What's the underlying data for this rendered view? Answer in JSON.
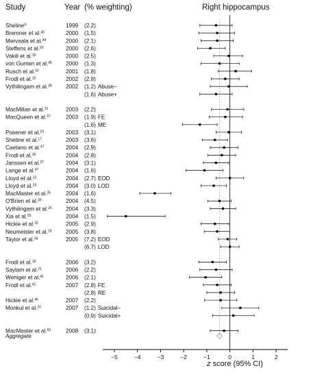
{
  "headers": {
    "study": "Study",
    "year": "Year",
    "weighting": "(% weighting)",
    "panel": "Right hippocampus"
  },
  "xlabel_prefix": "z",
  "xlabel_suffix": " score (95% CI)",
  "aggregate_label": "Aggregate",
  "colors": {
    "text": "#111111",
    "axis": "#000000",
    "ref_line": "#999999"
  },
  "chart_data": {
    "type": "forest",
    "xlim": [
      -5.5,
      2.5
    ],
    "xticks": [
      -5,
      -4,
      -3,
      -2,
      -1,
      0,
      1,
      2
    ],
    "xtick_labels": [
      "−5",
      "−4",
      "−3",
      "−2",
      "−1",
      "0",
      "1",
      "2"
    ],
    "aggregate": {
      "year": "",
      "weight": "",
      "estimate": -0.45
    },
    "rows": [
      {
        "study": "Sheline",
        "sup": "9",
        "year": "1999",
        "weight": "(2.2)",
        "sub": "",
        "est": -0.6,
        "lo": -1.3,
        "hi": 0.1
      },
      {
        "study": "Bremner et al.",
        "sup": "40",
        "year": "2000",
        "weight": "(1.5)",
        "sub": "",
        "est": -0.55,
        "lo": -1.35,
        "hi": 0.2
      },
      {
        "study": "Mervaala et al.",
        "sup": "44",
        "year": "2000",
        "weight": "(2.1)",
        "sub": "",
        "est": -0.55,
        "lo": -1.25,
        "hi": 0.15
      },
      {
        "study": "Steffens et al.",
        "sup": "30",
        "year": "2000",
        "weight": "(2.6)",
        "sub": "",
        "est": -0.85,
        "lo": -1.4,
        "hi": -0.2
      },
      {
        "study": "Vakili et al.",
        "sup": "32",
        "year": "2000",
        "weight": "(2.5)",
        "sub": "",
        "est": -0.05,
        "lo": -0.7,
        "hi": 0.55
      },
      {
        "study": "von Gunten et al.",
        "sup": "45",
        "year": "2000",
        "weight": "(1.3)",
        "sub": "",
        "est": -0.45,
        "lo": -1.25,
        "hi": 0.4
      },
      {
        "study": "Rusch et al.",
        "sup": "50",
        "year": "2001",
        "weight": "(1.8)",
        "sub": "",
        "est": 0.25,
        "lo": -0.5,
        "hi": 0.95
      },
      {
        "study": "Frodl et al.",
        "sup": "15",
        "year": "2002",
        "weight": "(2.8)",
        "sub": "",
        "est": -0.2,
        "lo": -0.8,
        "hi": 0.4
      },
      {
        "study": "Vythilingam et al.",
        "sup": "38",
        "year": "2002",
        "weight": "(1.2)",
        "sub": "Abuse–",
        "est": -0.05,
        "lo": -0.85,
        "hi": 0.75
      },
      {
        "study": "",
        "sup": "",
        "year": "",
        "weight": "(1.6)",
        "sub": "Abuse+",
        "est": -0.6,
        "lo": -1.3,
        "hi": 0.1
      },
      {
        "study": "",
        "sup": "",
        "year": "",
        "weight": "",
        "sub": "",
        "est": null,
        "lo": null,
        "hi": null
      },
      {
        "study": "MacMillan et al.",
        "sup": "31",
        "year": "2003",
        "weight": "(2.2)",
        "sub": "",
        "est": -0.1,
        "lo": -0.8,
        "hi": 0.6
      },
      {
        "study": "MacQueen et al.",
        "sup": "37",
        "year": "2003",
        "weight": "(1.9)",
        "sub": "FE",
        "est": -0.2,
        "lo": -0.9,
        "hi": 0.55
      },
      {
        "study": "",
        "sup": "",
        "year": "",
        "weight": "(1.6)",
        "sub": "ME",
        "est": -1.3,
        "lo": -2.05,
        "hi": -0.55
      },
      {
        "study": "Posener et al.",
        "sup": "29",
        "year": "2003",
        "weight": "(3.1)",
        "sub": "",
        "est": -0.05,
        "lo": -0.6,
        "hi": 0.5
      },
      {
        "study": "Sheline et al.",
        "sup": "17",
        "year": "2003",
        "weight": "(3.6)",
        "sub": "",
        "est": -0.65,
        "lo": -1.2,
        "hi": -0.1
      },
      {
        "study": "Caetano et al.",
        "sup": "47",
        "year": "2004",
        "weight": "(2.9)",
        "sub": "",
        "est": -0.25,
        "lo": -0.85,
        "hi": 0.35
      },
      {
        "study": "Frodl et al.",
        "sup": "16",
        "year": "2004",
        "weight": "(2.8)",
        "sub": "",
        "est": -0.35,
        "lo": -0.95,
        "hi": 0.25
      },
      {
        "study": "Janssen et al.",
        "sup": "27",
        "year": "2004",
        "weight": "(3.1)",
        "sub": "",
        "est": -0.6,
        "lo": -1.15,
        "hi": -0.05
      },
      {
        "study": "Lange et al.",
        "sup": "47",
        "year": "2004",
        "weight": "(1.6)",
        "sub": "",
        "est": -1.1,
        "lo": -1.9,
        "hi": -0.3
      },
      {
        "study": "Lloyd et al.",
        "sup": "33",
        "year": "2004",
        "weight": "(2.7)",
        "sub": "EOD",
        "est": 0.0,
        "lo": -0.6,
        "hi": 0.6
      },
      {
        "study": "Lloyd et al.",
        "sup": "33",
        "year": "2004",
        "weight": "(3.0)",
        "sub": "LOD",
        "est": -0.7,
        "lo": -1.25,
        "hi": -0.15
      },
      {
        "study": "MacMaster et al.",
        "sup": "35",
        "year": "2004",
        "weight": "(1.6)",
        "sub": "",
        "est": -3.25,
        "lo": -3.9,
        "hi": -2.55
      },
      {
        "study": "O'Brien et al.",
        "sup": "39",
        "year": "2004",
        "weight": "(4.5)",
        "sub": "",
        "est": -0.45,
        "lo": -0.95,
        "hi": 0.05
      },
      {
        "study": "Vythilingam et al.",
        "sup": "26",
        "year": "2004",
        "weight": "(3.3)",
        "sub": "",
        "est": -0.3,
        "lo": -0.85,
        "hi": 0.25
      },
      {
        "study": "Xia et al.",
        "sup": "53",
        "year": "2004",
        "weight": "(1.5)",
        "sub": "",
        "est": -4.5,
        "lo": -5.3,
        "hi": -2.8
      },
      {
        "study": "Hickie et al.",
        "sup": "22",
        "year": "2005",
        "weight": "(2.9)",
        "sub": "",
        "est": -0.65,
        "lo": -1.25,
        "hi": -0.05
      },
      {
        "study": "Neumeister et al.",
        "sup": "19",
        "year": "2005",
        "weight": "(3.8)",
        "sub": "",
        "est": -0.55,
        "lo": -1.1,
        "hi": 0.0
      },
      {
        "study": "Taylor et al.",
        "sup": "34",
        "year": "2005",
        "weight": "(7.2)",
        "sub": "EOD",
        "est": -0.1,
        "lo": -0.5,
        "hi": 0.3
      },
      {
        "study": "",
        "sup": "",
        "year": "",
        "weight": "(6.7)",
        "sub": "LOD",
        "est": 0.0,
        "lo": -0.4,
        "hi": 0.4
      },
      {
        "study": "",
        "sup": "",
        "year": "",
        "weight": "",
        "sub": "",
        "est": null,
        "lo": null,
        "hi": null
      },
      {
        "study": "Frodl et al.",
        "sup": "18",
        "year": "2006",
        "weight": "(3.2)",
        "sub": "",
        "est": -0.75,
        "lo": -1.35,
        "hi": -0.15
      },
      {
        "study": "Saylam et al.",
        "sup": "21",
        "year": "2006",
        "weight": "(2.2)",
        "sub": "",
        "est": -0.6,
        "lo": -1.3,
        "hi": 0.1
      },
      {
        "study": "Weniger et al.",
        "sup": "41",
        "year": "2006",
        "weight": "(2.1)",
        "sub": "",
        "est": -1.05,
        "lo": -1.75,
        "hi": -0.35
      },
      {
        "study": "Frodl et al.",
        "sup": "42",
        "year": "2007",
        "weight": "(2.8)",
        "sub": "FE",
        "est": -0.55,
        "lo": -1.15,
        "hi": 0.05
      },
      {
        "study": "",
        "sup": "",
        "year": "",
        "weight": "(2.8)",
        "sub": "RE",
        "est": -0.4,
        "lo": -1.0,
        "hi": 0.2
      },
      {
        "study": "Hickie et al.",
        "sup": "46",
        "year": "2007",
        "weight": "(2.2)",
        "sub": "",
        "est": -0.4,
        "lo": -1.1,
        "hi": 0.3
      },
      {
        "study": "Monkul et al.",
        "sup": "20",
        "year": "2007",
        "weight": "(1.2)",
        "sub": "Suicidal–",
        "est": 0.45,
        "lo": -0.35,
        "hi": 1.25
      },
      {
        "study": "",
        "sup": "",
        "year": "",
        "weight": "(0.9)",
        "sub": "Suicidal+",
        "est": 0.15,
        "lo": -0.75,
        "hi": 1.05
      },
      {
        "study": "",
        "sup": "",
        "year": "",
        "weight": "",
        "sub": "",
        "est": null,
        "lo": null,
        "hi": null
      },
      {
        "study": "MacMaster et al.",
        "sup": "60",
        "year": "2008",
        "weight": "(3.1)",
        "sub": "",
        "est": -0.25,
        "lo": -0.85,
        "hi": 0.35
      }
    ]
  }
}
